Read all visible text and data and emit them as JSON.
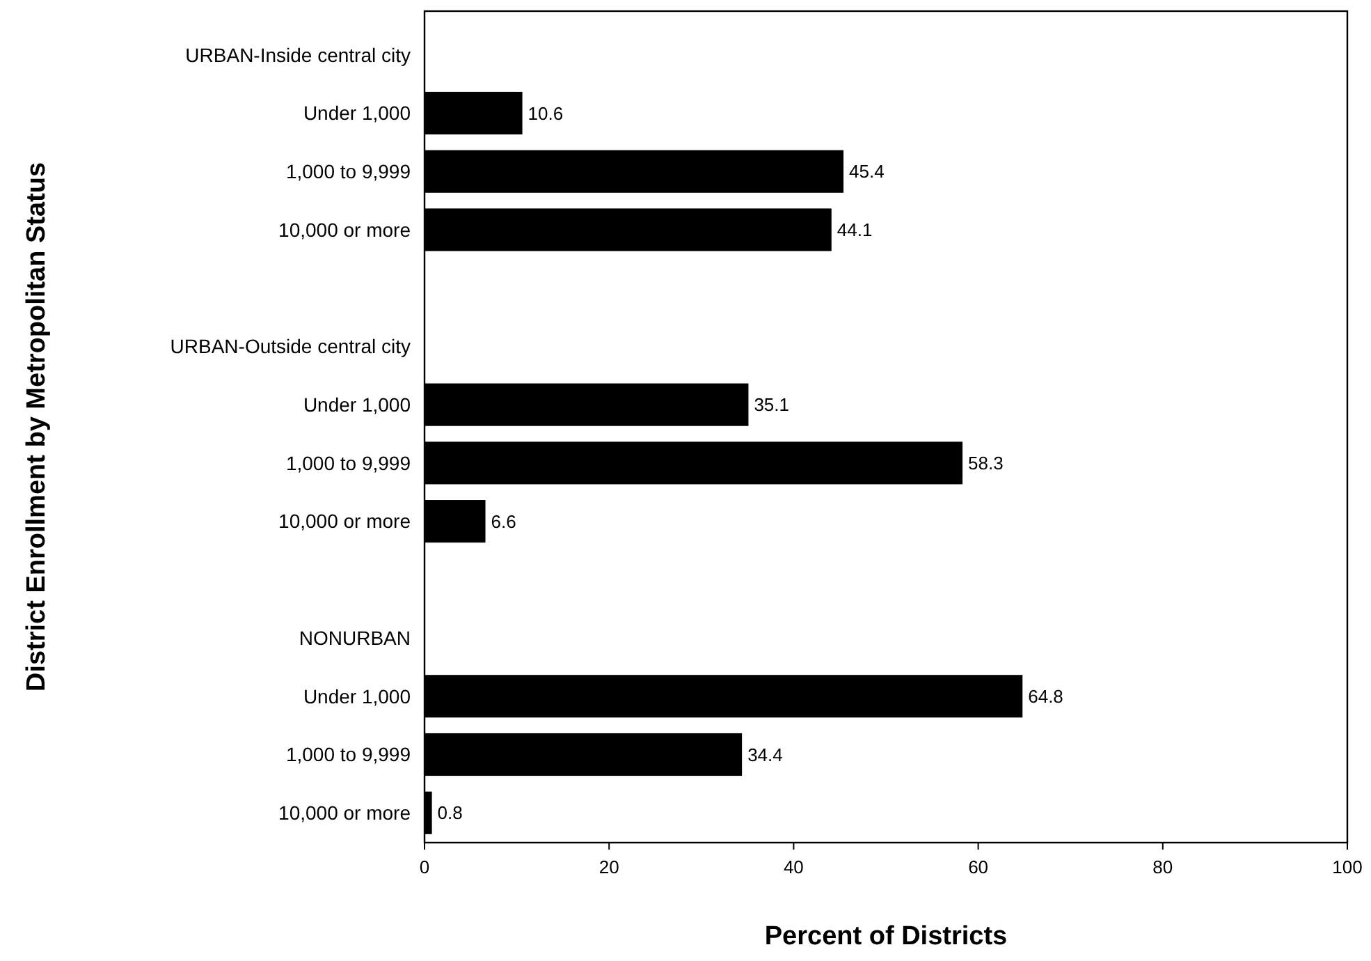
{
  "chart_data": {
    "type": "bar",
    "orientation": "horizontal",
    "xlabel": "Percent of Districts",
    "ylabel": "District Enrollment by Metropolitan Status",
    "categories": [
      "URBAN-Inside central city",
      "Under 1,000",
      "1,000 to 9,999",
      "10,000 or more",
      null,
      "URBAN-Outside central city",
      "Under 1,000",
      "1,000 to 9,999",
      "10,000 or more",
      null,
      "NONURBAN",
      "Under 1,000",
      "1,000 to 9,999",
      "10,000 or more"
    ],
    "values": [
      null,
      10.6,
      45.4,
      44.1,
      null,
      null,
      35.1,
      58.3,
      6.6,
      null,
      null,
      64.8,
      34.4,
      0.8
    ],
    "color": "#000000",
    "data_labels": true,
    "xlim": [
      0,
      100
    ],
    "xticks": [
      0,
      20,
      40,
      60,
      80,
      100
    ]
  }
}
